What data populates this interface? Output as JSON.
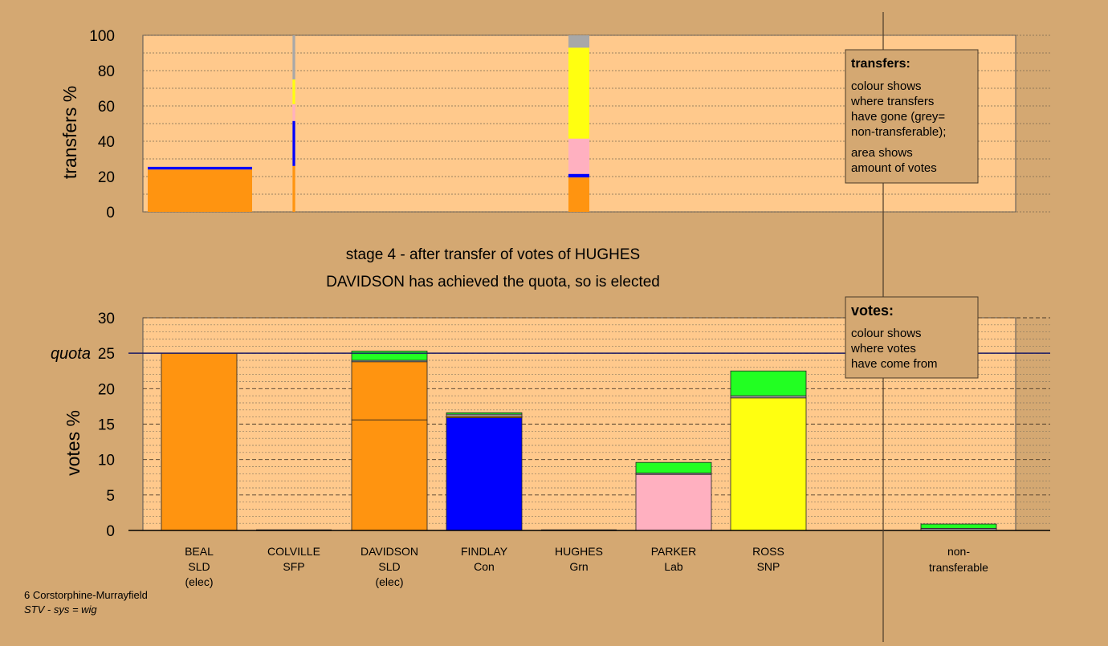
{
  "stage_title": "stage 4 - after transfer of votes of HUGHES",
  "stage_subtitle": "DAVIDSON has achieved the quota, so is elected",
  "footer": {
    "constituency": "6 Corstorphine-Murrayfield",
    "system": "STV - sys = wig"
  },
  "colors": {
    "background": "#d4a872",
    "plot": "#ffc98c",
    "SLD": "#ff9410",
    "SFP": "#a0a0a0",
    "Con": "#0000ff",
    "Grn": "#22ff22",
    "Lab": "#ffb0c0",
    "SNP": "#ffff10",
    "non_transferable": "#a8a8a8"
  },
  "candidates": [
    {
      "name": "BEAL",
      "party": "SLD",
      "status": "(elec)"
    },
    {
      "name": "COLVILLE",
      "party": "SFP",
      "status": ""
    },
    {
      "name": "DAVIDSON",
      "party": "SLD",
      "status": "(elec)"
    },
    {
      "name": "FINDLAY",
      "party": "Con",
      "status": ""
    },
    {
      "name": "HUGHES",
      "party": "Grn",
      "status": ""
    },
    {
      "name": "PARKER",
      "party": "Lab",
      "status": ""
    },
    {
      "name": "ROSS",
      "party": "SNP",
      "status": ""
    }
  ],
  "non_transferable_label": [
    "non-",
    "transferable"
  ],
  "legends": {
    "transfers": {
      "title": "transfers:",
      "lines_1": [
        "colour shows",
        "where transfers",
        "have gone (grey=",
        "non-transferable);"
      ],
      "lines_2": [
        "area shows",
        "amount of votes"
      ]
    },
    "votes": {
      "title": "votes:",
      "lines": [
        "colour shows",
        "where votes",
        "have come from"
      ]
    }
  },
  "chart_data": [
    {
      "type": "bar",
      "title": "transfers",
      "ylabel": "transfers %",
      "ylim": [
        0,
        100
      ],
      "yticks": [
        0,
        20,
        40,
        60,
        80,
        100
      ],
      "categories": [
        "BEAL",
        "COLVILLE",
        "DAVIDSON",
        "FINDLAY",
        "HUGHES",
        "PARKER",
        "ROSS"
      ],
      "bars": [
        {
          "source": "BEAL",
          "width_votes_pct": 0.8,
          "segments": [
            {
              "to": "DAVIDSON",
              "party": "SLD",
              "from": 0,
              "to_pct": 24
            },
            {
              "to": "FINDLAY",
              "party": "Con",
              "from": 24,
              "to_pct": 25.5
            }
          ]
        },
        {
          "source": "COLVILLE",
          "width_votes_pct": 0.02,
          "segments": [
            {
              "to": "DAVIDSON",
              "party": "SLD",
              "from": 0,
              "to_pct": 26
            },
            {
              "to": "FINDLAY",
              "party": "Con",
              "from": 26,
              "to_pct": 51.5
            },
            {
              "to": "PARKER",
              "party": "Lab",
              "from": 51.5,
              "to_pct": 61
            },
            {
              "to": "ROSS",
              "party": "SNP",
              "from": 61,
              "to_pct": 75
            },
            {
              "to": "non-transferable",
              "party": "non",
              "from": 75,
              "to_pct": 100
            }
          ]
        },
        {
          "source": "HUGHES",
          "width_votes_pct": 0.16,
          "segments": [
            {
              "to": "DAVIDSON",
              "party": "SLD",
              "from": 0,
              "to_pct": 19.5
            },
            {
              "to": "FINDLAY",
              "party": "Con",
              "from": 19.5,
              "to_pct": 21.5
            },
            {
              "to": "PARKER",
              "party": "Lab",
              "from": 21.5,
              "to_pct": 41.5
            },
            {
              "to": "ROSS",
              "party": "SNP",
              "from": 41.5,
              "to_pct": 93
            },
            {
              "to": "non-transferable",
              "party": "non",
              "from": 93,
              "to_pct": 100
            }
          ]
        }
      ]
    },
    {
      "type": "bar",
      "title": "votes",
      "ylabel": "votes %",
      "quota_label": "quota",
      "quota": 25,
      "ylim": [
        0,
        30
      ],
      "yticks": [
        0,
        5,
        10,
        15,
        20,
        25,
        30
      ],
      "categories": [
        "BEAL",
        "COLVILLE",
        "DAVIDSON",
        "FINDLAY",
        "HUGHES",
        "PARKER",
        "ROSS",
        "non-transferable"
      ],
      "bars": [
        {
          "candidate": "BEAL",
          "segments": [
            {
              "from": "SLD",
              "value": 25.0
            }
          ]
        },
        {
          "candidate": "COLVILLE",
          "segments": []
        },
        {
          "candidate": "DAVIDSON",
          "segments": [
            {
              "from": "SLD",
              "value": 15.6
            },
            {
              "from": "SLD",
              "value": 8.2
            },
            {
              "from": "SFP",
              "value": 0.2
            },
            {
              "from": "Grn",
              "value": 1.3
            }
          ]
        },
        {
          "candidate": "FINDLAY",
          "segments": [
            {
              "from": "Con",
              "value": 15.9
            },
            {
              "from": "SLD",
              "value": 0.2
            },
            {
              "from": "SFP",
              "value": 0.3
            },
            {
              "from": "Grn",
              "value": 0.2
            }
          ]
        },
        {
          "candidate": "HUGHES",
          "segments": []
        },
        {
          "candidate": "PARKER",
          "segments": [
            {
              "from": "Lab",
              "value": 7.9
            },
            {
              "from": "SFP",
              "value": 0.2
            },
            {
              "from": "Grn",
              "value": 1.5
            }
          ]
        },
        {
          "candidate": "ROSS",
          "segments": [
            {
              "from": "SNP",
              "value": 18.7
            },
            {
              "from": "SFP",
              "value": 0.3
            },
            {
              "from": "Grn",
              "value": 3.5
            }
          ]
        },
        {
          "candidate": "non-transferable",
          "segments": [
            {
              "from": "SFP",
              "value": 0.3
            },
            {
              "from": "Grn",
              "value": 0.6
            }
          ]
        }
      ]
    }
  ]
}
